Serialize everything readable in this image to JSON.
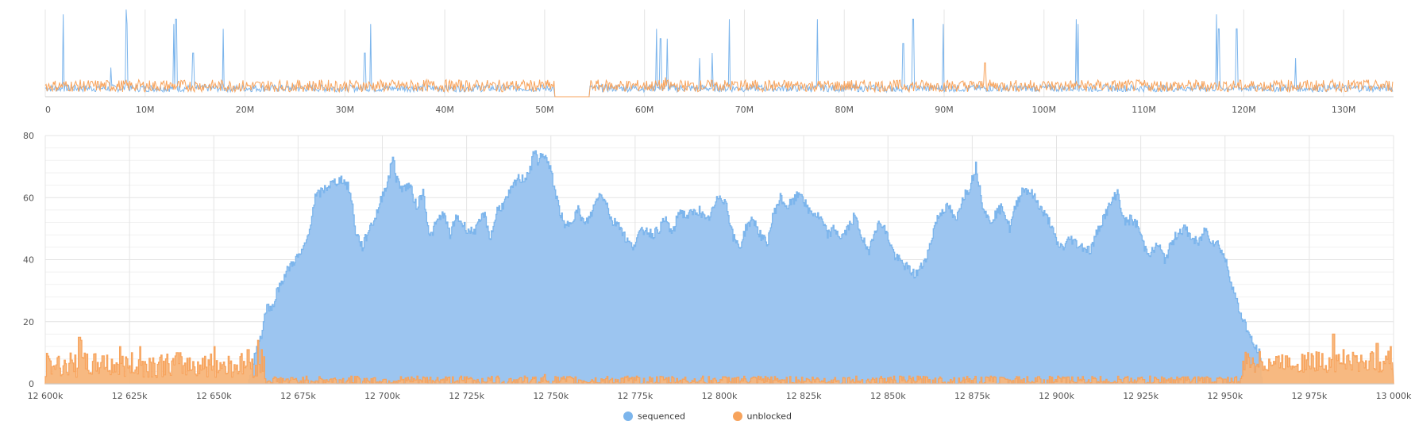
{
  "chart_data": [
    {
      "type": "line",
      "panel": "overview",
      "x_ticks": [
        "0",
        "10M",
        "20M",
        "30M",
        "40M",
        "50M",
        "60M",
        "70M",
        "80M",
        "90M",
        "100M",
        "110M",
        "120M",
        "130M"
      ],
      "x_tick_values": [
        0,
        10,
        20,
        30,
        40,
        50,
        60,
        70,
        80,
        90,
        100,
        110,
        120,
        130
      ],
      "xlim": [
        0,
        135
      ],
      "x_unit_note": "millions",
      "gap": [
        51,
        54.5
      ],
      "series": [
        {
          "key": "sequenced",
          "baseline": 1,
          "noise": 1.5,
          "spikes": [
            [
              1.8,
              17
            ],
            [
              8.1,
              18
            ],
            [
              8.2,
              15
            ],
            [
              12.9,
              15
            ],
            [
              13.1,
              16
            ],
            [
              14.8,
              9
            ],
            [
              17.8,
              14
            ],
            [
              6.6,
              6
            ],
            [
              32,
              9
            ],
            [
              32.6,
              15
            ],
            [
              61.2,
              14
            ],
            [
              61.6,
              12
            ],
            [
              62.3,
              12
            ],
            [
              65.5,
              8
            ],
            [
              66.8,
              9
            ],
            [
              68.5,
              16
            ],
            [
              77.3,
              16
            ],
            [
              85.9,
              11
            ],
            [
              86.9,
              16
            ],
            [
              89.9,
              15
            ],
            [
              103.2,
              16
            ],
            [
              103.4,
              15
            ],
            [
              117.3,
              17
            ],
            [
              117.5,
              14
            ],
            [
              119.3,
              14
            ],
            [
              125.2,
              8
            ]
          ]
        },
        {
          "key": "unblocked",
          "baseline": 1,
          "noise": 2.5,
          "spikes": [
            [
              94.1,
              7
            ],
            [
              62.1,
              4
            ],
            [
              69.1,
              3
            ]
          ]
        }
      ],
      "ylim": [
        0,
        18
      ]
    },
    {
      "type": "area",
      "panel": "detail",
      "x_ticks": [
        "12 600k",
        "12 625k",
        "12 650k",
        "12 675k",
        "12 700k",
        "12 725k",
        "12 750k",
        "12 775k",
        "12 800k",
        "12 825k",
        "12 850k",
        "12 875k",
        "12 900k",
        "12 925k",
        "12 950k",
        "12 975k",
        "13 000k"
      ],
      "x_tick_values": [
        12600,
        12625,
        12650,
        12675,
        12700,
        12725,
        12750,
        12775,
        12800,
        12825,
        12850,
        12875,
        12900,
        12925,
        12950,
        12975,
        13000
      ],
      "xlim": [
        12600,
        13000
      ],
      "y_ticks": [
        "0",
        "20",
        "40",
        "60",
        "80"
      ],
      "ylim": [
        0,
        80
      ],
      "grid": true,
      "series": [
        {
          "name": "sequenced",
          "color": "#7cb5ec",
          "fill": "#9cc5f0",
          "points": [
            [
              12600,
              0
            ],
            [
              12660,
              0
            ],
            [
              12661,
              4
            ],
            [
              12662,
              9
            ],
            [
              12663,
              13
            ],
            [
              12664,
              16
            ],
            [
              12665,
              22
            ],
            [
              12666,
              26
            ],
            [
              12667,
              23
            ],
            [
              12668,
              28
            ],
            [
              12670,
              33
            ],
            [
              12672,
              37
            ],
            [
              12674,
              40
            ],
            [
              12676,
              42
            ],
            [
              12678,
              48
            ],
            [
              12679,
              55
            ],
            [
              12680,
              60
            ],
            [
              12682,
              62
            ],
            [
              12684,
              64
            ],
            [
              12686,
              65
            ],
            [
              12688,
              66
            ],
            [
              12690,
              63
            ],
            [
              12691,
              57
            ],
            [
              12692,
              49
            ],
            [
              12694,
              44
            ],
            [
              12696,
              50
            ],
            [
              12698,
              54
            ],
            [
              12700,
              61
            ],
            [
              12702,
              67
            ],
            [
              12703,
              74
            ],
            [
              12704,
              66
            ],
            [
              12706,
              63
            ],
            [
              12708,
              64
            ],
            [
              12710,
              57
            ],
            [
              12712,
              62
            ],
            [
              12714,
              47
            ],
            [
              12716,
              52
            ],
            [
              12718,
              55
            ],
            [
              12720,
              48
            ],
            [
              12722,
              54
            ],
            [
              12724,
              51
            ],
            [
              12726,
              49
            ],
            [
              12728,
              50
            ],
            [
              12730,
              55
            ],
            [
              12732,
              47
            ],
            [
              12734,
              56
            ],
            [
              12736,
              58
            ],
            [
              12738,
              62
            ],
            [
              12740,
              66
            ],
            [
              12742,
              66
            ],
            [
              12744,
              70
            ],
            [
              12745,
              75
            ],
            [
              12746,
              72
            ],
            [
              12748,
              74
            ],
            [
              12750,
              68
            ],
            [
              12752,
              58
            ],
            [
              12754,
              50
            ],
            [
              12756,
              53
            ],
            [
              12758,
              56
            ],
            [
              12760,
              51
            ],
            [
              12762,
              55
            ],
            [
              12764,
              61
            ],
            [
              12766,
              60
            ],
            [
              12768,
              52
            ],
            [
              12770,
              52
            ],
            [
              12772,
              47
            ],
            [
              12774,
              44
            ],
            [
              12776,
              48
            ],
            [
              12778,
              50
            ],
            [
              12780,
              48
            ],
            [
              12782,
              50
            ],
            [
              12784,
              53
            ],
            [
              12786,
              48
            ],
            [
              12788,
              56
            ],
            [
              12790,
              54
            ],
            [
              12792,
              55
            ],
            [
              12794,
              56
            ],
            [
              12796,
              52
            ],
            [
              12798,
              56
            ],
            [
              12800,
              61
            ],
            [
              12802,
              58
            ],
            [
              12804,
              47
            ],
            [
              12806,
              44
            ],
            [
              12808,
              51
            ],
            [
              12810,
              53
            ],
            [
              12812,
              48
            ],
            [
              12814,
              45
            ],
            [
              12816,
              55
            ],
            [
              12818,
              60
            ],
            [
              12820,
              57
            ],
            [
              12822,
              59
            ],
            [
              12824,
              62
            ],
            [
              12826,
              56
            ],
            [
              12828,
              55
            ],
            [
              12830,
              53
            ],
            [
              12832,
              48
            ],
            [
              12834,
              50
            ],
            [
              12836,
              47
            ],
            [
              12838,
              50
            ],
            [
              12840,
              54
            ],
            [
              12842,
              48
            ],
            [
              12844,
              42
            ],
            [
              12846,
              50
            ],
            [
              12848,
              52
            ],
            [
              12850,
              47
            ],
            [
              12852,
              41
            ],
            [
              12854,
              39
            ],
            [
              12856,
              37
            ],
            [
              12858,
              35
            ],
            [
              12860,
              38
            ],
            [
              12862,
              43
            ],
            [
              12864,
              52
            ],
            [
              12866,
              56
            ],
            [
              12868,
              57
            ],
            [
              12870,
              52
            ],
            [
              12872,
              60
            ],
            [
              12874,
              63
            ],
            [
              12876,
              70
            ],
            [
              12878,
              58
            ],
            [
              12880,
              52
            ],
            [
              12882,
              55
            ],
            [
              12884,
              57
            ],
            [
              12886,
              50
            ],
            [
              12888,
              58
            ],
            [
              12890,
              63
            ],
            [
              12892,
              62
            ],
            [
              12894,
              59
            ],
            [
              12896,
              55
            ],
            [
              12898,
              52
            ],
            [
              12900,
              45
            ],
            [
              12902,
              44
            ],
            [
              12904,
              47
            ],
            [
              12906,
              45
            ],
            [
              12908,
              44
            ],
            [
              12910,
              43
            ],
            [
              12912,
              49
            ],
            [
              12914,
              54
            ],
            [
              12916,
              58
            ],
            [
              12918,
              62
            ],
            [
              12920,
              52
            ],
            [
              12922,
              53
            ],
            [
              12924,
              51
            ],
            [
              12926,
              44
            ],
            [
              12928,
              42
            ],
            [
              12930,
              45
            ],
            [
              12932,
              40
            ],
            [
              12934,
              45
            ],
            [
              12936,
              49
            ],
            [
              12938,
              50
            ],
            [
              12940,
              47
            ],
            [
              12942,
              45
            ],
            [
              12944,
              50
            ],
            [
              12946,
              46
            ],
            [
              12948,
              45
            ],
            [
              12950,
              40
            ],
            [
              12952,
              32
            ],
            [
              12954,
              24
            ],
            [
              12956,
              19
            ],
            [
              12958,
              13
            ],
            [
              12960,
              10
            ],
            [
              12961,
              0
            ],
            [
              13000,
              0
            ]
          ]
        },
        {
          "name": "unblocked",
          "color": "#f7a35c",
          "fill": "#f7b57a",
          "level_before": [
            12600,
            12665,
            6,
            4
          ],
          "level_mid": [
            12665,
            12955,
            1,
            1.5
          ],
          "level_after": [
            12955,
            13000,
            7,
            3.5
          ],
          "spikes": [
            [
              12610,
              15
            ],
            [
              12610.5,
              14
            ],
            [
              12617,
              9
            ],
            [
              12622,
              12
            ],
            [
              12628,
              12
            ],
            [
              12639,
              10
            ],
            [
              12650,
              12
            ],
            [
              12660,
              11
            ],
            [
              12663,
              14
            ],
            [
              12664,
              11
            ],
            [
              12673,
              2
            ],
            [
              12726,
              2
            ],
            [
              12748,
              3
            ],
            [
              12805,
              2
            ],
            [
              12835,
              1
            ],
            [
              12884,
              2
            ],
            [
              12968,
              9
            ],
            [
              12982,
              16
            ],
            [
              12985,
              11
            ],
            [
              12995,
              13
            ],
            [
              12999,
              12
            ]
          ]
        }
      ]
    }
  ],
  "legend": [
    {
      "label": "sequenced",
      "color": "#7cb5ec"
    },
    {
      "label": "unblocked",
      "color": "#f7a35c"
    }
  ]
}
